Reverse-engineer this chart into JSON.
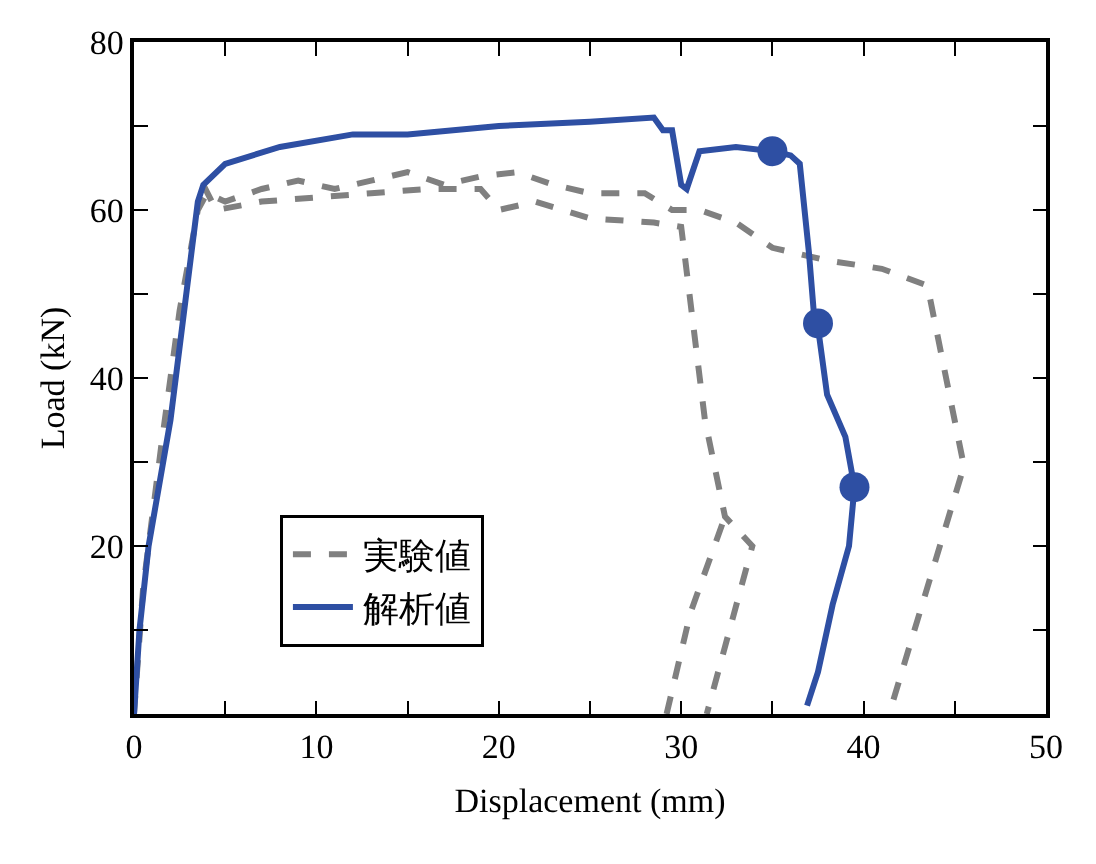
{
  "chart_data": {
    "type": "line",
    "xlabel": "Displacement (mm)",
    "ylabel": "Load (kN)",
    "xlim": [
      0,
      50
    ],
    "ylim": [
      0,
      80
    ],
    "xticks": [
      0,
      {
        "value": 5,
        "label": null
      },
      10,
      {
        "value": 15,
        "label": null
      },
      20,
      {
        "value": 25,
        "label": null
      },
      30,
      {
        "value": 35,
        "label": null
      },
      40,
      {
        "value": 45,
        "label": null
      },
      50
    ],
    "yticks": [
      {
        "value": 0,
        "label": null
      },
      {
        "value": 10,
        "label": null
      },
      20,
      {
        "value": 30,
        "label": null
      },
      40,
      {
        "value": 50,
        "label": null
      },
      60,
      {
        "value": 70,
        "label": null
      },
      80
    ],
    "grid": false,
    "legend": "bottom left",
    "series": [
      {
        "name": "実験値",
        "color": "#808080",
        "line_style": "dashed",
        "marker": "none",
        "x": [
          0,
          0.5,
          1.5,
          2.5,
          3.5,
          4,
          5,
          7,
          9,
          11,
          13,
          15,
          17,
          19,
          21,
          23,
          25,
          28,
          29.5,
          31,
          33,
          35,
          38,
          41,
          43.5,
          45.5,
          41.4,
          null,
          3.8,
          4.5,
          7,
          10,
          13,
          16,
          19,
          20,
          22,
          25,
          28.5,
          30,
          31.3,
          32.4,
          33.9,
          31.4,
          null,
          29.2,
          30.5,
          32.4
        ],
        "values": [
          0,
          15,
          32,
          48,
          60,
          62,
          61,
          62.5,
          63.5,
          62.5,
          63.5,
          64.5,
          63,
          64,
          64.5,
          63,
          62,
          62,
          60,
          60,
          58.5,
          55.5,
          54,
          53,
          51,
          29.5,
          0,
          null,
          63,
          60,
          61,
          61.5,
          62,
          62.5,
          62.5,
          60,
          61,
          59,
          58.5,
          58,
          35,
          23.5,
          20,
          0,
          null,
          0,
          12,
          23.5
        ]
      },
      {
        "name": "解析値",
        "color": "#2e4fa3",
        "line_style": "solid",
        "marker": "none",
        "x": [
          0,
          0.3,
          0.8,
          2,
          3.5,
          3.8,
          5,
          8,
          12,
          15,
          20,
          25,
          28.5,
          29,
          29.5,
          30,
          30.3,
          31,
          33,
          35,
          36,
          36.5,
          37,
          37.3,
          37.5,
          38,
          39,
          39.5,
          39.2,
          38.3,
          37.5,
          36.9
        ],
        "values": [
          0,
          10,
          20,
          35,
          61,
          63,
          65.5,
          67.5,
          69,
          69,
          70,
          70.5,
          71,
          69.5,
          69.5,
          63,
          62.5,
          67,
          67.5,
          67,
          66.5,
          65.5,
          55,
          47,
          46,
          38,
          33,
          27,
          20,
          13,
          5,
          1
        ]
      },
      {
        "type": "scatter",
        "color": "#2e4fa3",
        "marker": "circle",
        "x": [
          35,
          37.5,
          39.5
        ],
        "values": [
          67,
          46.5,
          27
        ]
      }
    ]
  }
}
